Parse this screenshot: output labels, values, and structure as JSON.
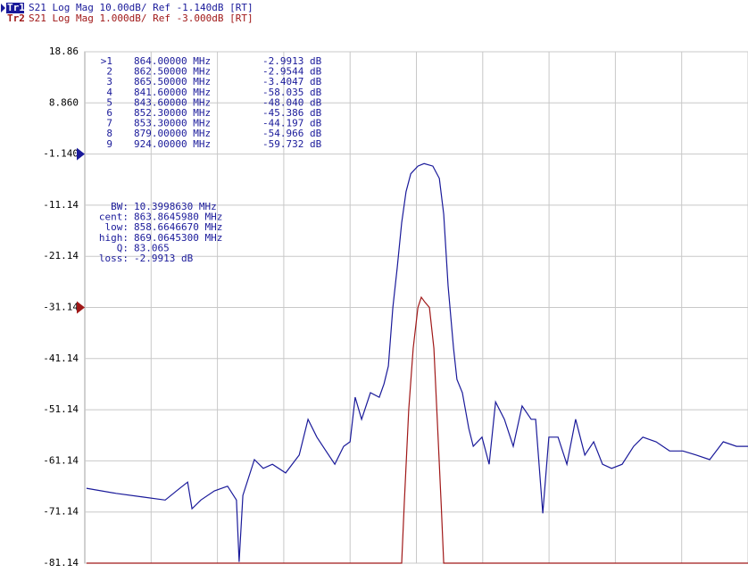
{
  "chart_data": {
    "type": "line",
    "trace_info": [
      {
        "name": "Tr1",
        "info": "S21 Log Mag 10.00dB/ Ref -1.140dB [RT]"
      },
      {
        "name": "Tr2",
        "info": "S21 Log Mag 1.000dB/ Ref -3.000dB [RT]"
      }
    ],
    "xlim": [
      764,
      959.5
    ],
    "ylim": [
      -81.14,
      18.86
    ],
    "yticks": [
      18.86,
      {
        "value": 8.86,
        "label": "8.860"
      },
      {
        "value": -1.14,
        "label": "-1.140"
      },
      -11.14,
      -21.14,
      -31.14,
      -41.14,
      -51.14,
      -61.14,
      -71.14,
      -81.14
    ],
    "y2lim": [
      -8,
      2
    ],
    "grid": true,
    "series": [
      {
        "name": "Tr1",
        "color": "#1a1a9a",
        "ref": -1.14,
        "x": [
          764.5,
          773.2,
          781.1,
          787.7,
          791.6,
          794.3,
          795.6,
          798.2,
          802.2,
          806.1,
          808.7,
          809.5,
          810.6,
          814,
          816.6,
          819.3,
          823.2,
          827.2,
          829.8,
          832.4,
          835.1,
          837.7,
          840.3,
          842.2,
          843.7,
          845.6,
          848.2,
          850.8,
          852.2,
          853.5,
          854.8,
          856.1,
          857.4,
          858.7,
          860.1,
          862.2,
          864,
          866.6,
          868.5,
          869.8,
          871.1,
          872.7,
          873.7,
          875.3,
          877.2,
          878.5,
          881.1,
          883.2,
          885.1,
          887.7,
          890.3,
          892.9,
          895.6,
          896.9,
          899,
          900.8,
          903.5,
          906.1,
          908.7,
          911.4,
          914,
          916.6,
          919.3,
          922.4,
          925.8,
          928.5,
          932.4,
          936.4,
          940.3,
          944.3,
          948.2,
          952.2,
          956.1,
          959.5
        ],
        "values": [
          -66.5,
          -67.5,
          -68.2,
          -68.8,
          -66.7,
          -65.3,
          -70.5,
          -68.8,
          -67.0,
          -66.1,
          -68.8,
          -80.9,
          -67.9,
          -60.9,
          -62.6,
          -61.8,
          -63.5,
          -60.0,
          -53.0,
          -56.5,
          -59.2,
          -61.8,
          -58.3,
          -57.4,
          -48.7,
          -53.0,
          -47.8,
          -48.7,
          -46.1,
          -42.6,
          -31.2,
          -23.4,
          -14.6,
          -8.5,
          -5.0,
          -3.5,
          -3.0,
          -3.5,
          -5.9,
          -12.9,
          -26.9,
          -39.1,
          -45.2,
          -47.8,
          -54.8,
          -58.3,
          -56.5,
          -61.8,
          -49.6,
          -53.0,
          -58.3,
          -50.4,
          -53.0,
          -53.0,
          -71.4,
          -56.5,
          -56.5,
          -61.8,
          -53.0,
          -60.0,
          -57.4,
          -61.8,
          -62.6,
          -61.8,
          -58.3,
          -56.5,
          -57.4,
          -59.2,
          -59.2,
          -60.0,
          -60.9,
          -57.4,
          -58.3,
          -58.3
        ]
      },
      {
        "name": "Tr2",
        "color": "#a01818",
        "axis": "y2",
        "ref": -3,
        "x": [
          764.5,
          857.4,
          858.2,
          859.5,
          860.8,
          862.2,
          863.2,
          864.3,
          865.6,
          866.9,
          867.9,
          869.1,
          869.8,
          959.5
        ],
        "values": [
          -8,
          -8,
          -6.8,
          -5.0,
          -3.8,
          -3.0,
          -2.8,
          -2.9,
          -3.0,
          -3.8,
          -5.2,
          -6.9,
          -8,
          -8
        ]
      }
    ],
    "markers": [
      [
        ">1",
        "864.00000 MHz",
        "-2.9913 dB"
      ],
      [
        "2",
        "862.50000 MHz",
        "-2.9544 dB"
      ],
      [
        "3",
        "865.50000 MHz",
        "-3.4047 dB"
      ],
      [
        "4",
        "841.60000 MHz",
        "-58.035 dB"
      ],
      [
        "5",
        "843.60000 MHz",
        "-48.040 dB"
      ],
      [
        "6",
        "852.30000 MHz",
        "-45.386 dB"
      ],
      [
        "7",
        "853.30000 MHz",
        "-44.197 dB"
      ],
      [
        "8",
        "879.00000 MHz",
        "-54.966 dB"
      ],
      [
        "9",
        "924.00000 MHz",
        "-59.732 dB"
      ]
    ],
    "stats": [
      [
        "BW:",
        "10.3998630 MHz"
      ],
      [
        "cent:",
        "863.8645980 MHz"
      ],
      [
        "low:",
        "858.6646670 MHz"
      ],
      [
        "high:",
        "869.0645300 MHz"
      ],
      [
        "Q:",
        "83.065"
      ],
      [
        "loss:",
        "-2.9913 dB"
      ]
    ]
  }
}
